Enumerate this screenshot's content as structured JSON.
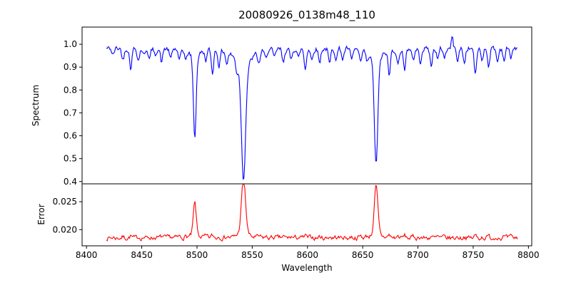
{
  "title": "20080926_0138m48_110",
  "colors": {
    "spectrum_line": "#0000ff",
    "error_line": "#ff0000",
    "axis": "#000000",
    "background": "#ffffff"
  },
  "axes": {
    "xlabel": "Wavelength",
    "xlim": [
      8396,
      8803
    ],
    "xticks": [
      {
        "value": 8400,
        "label": "8400"
      },
      {
        "value": 8450,
        "label": "8450"
      },
      {
        "value": 8500,
        "label": "8500"
      },
      {
        "value": 8550,
        "label": "8550"
      },
      {
        "value": 8600,
        "label": "8600"
      },
      {
        "value": 8650,
        "label": "8650"
      },
      {
        "value": 8700,
        "label": "8700"
      },
      {
        "value": 8750,
        "label": "8750"
      },
      {
        "value": 8800,
        "label": "8800"
      }
    ]
  },
  "panels": {
    "top": {
      "ylabel": "Spectrum",
      "ylim": [
        0.39,
        1.075
      ],
      "yticks": [
        {
          "value": 1.0,
          "label": "1.0"
        },
        {
          "value": 0.9,
          "label": "0.9"
        },
        {
          "value": 0.8,
          "label": "0.8"
        },
        {
          "value": 0.7,
          "label": "0.7"
        },
        {
          "value": 0.6,
          "label": "0.6"
        },
        {
          "value": 0.5,
          "label": "0.5"
        },
        {
          "value": 0.4,
          "label": "0.4"
        }
      ]
    },
    "bottom": {
      "ylabel": "Error",
      "ylim": [
        0.0171,
        0.0282
      ],
      "yticks": [
        {
          "value": 0.025,
          "label": "0.025"
        },
        {
          "value": 0.02,
          "label": "0.020"
        }
      ]
    }
  },
  "chart_data": {
    "type": "line",
    "title": "20080926_0138m48_110",
    "xlabel": "Wavelength",
    "x_range": [
      8418,
      8790
    ],
    "x_step": 0.75,
    "legend": "none",
    "grid": false,
    "panels": [
      {
        "name": "spectrum",
        "ylabel": "Spectrum",
        "ylim": [
          0.39,
          1.075
        ]
      },
      {
        "name": "error",
        "ylabel": "Error",
        "ylim": [
          0.0171,
          0.0282
        ]
      }
    ],
    "series": [
      {
        "name": "spectrum",
        "panel": "top",
        "color": "#0000ff",
        "continuum": 0.982,
        "noise_amplitude": 0.011,
        "strong_absorption_lines": [
          {
            "center": 8498.0,
            "core_depth": 0.34,
            "core_sigma": 1.2,
            "wing_depth": 0.05,
            "wing_gamma": 4.0,
            "min_value": 0.59
          },
          {
            "center": 8542.1,
            "core_depth": 0.45,
            "core_sigma": 1.8,
            "wing_depth": 0.12,
            "wing_gamma": 6.0,
            "min_value": 0.42
          },
          {
            "center": 8662.1,
            "core_depth": 0.43,
            "core_sigma": 1.5,
            "wing_depth": 0.08,
            "wing_gamma": 5.0,
            "min_value": 0.46
          }
        ],
        "weak_absorption_lines": [
          [
            8424,
            0.03
          ],
          [
            8433,
            0.05
          ],
          [
            8440,
            0.085
          ],
          [
            8447,
            0.05
          ],
          [
            8452,
            0.03
          ],
          [
            8457,
            0.045
          ],
          [
            8462,
            0.03
          ],
          [
            8468,
            0.06
          ],
          [
            8476,
            0.045
          ],
          [
            8484,
            0.055
          ],
          [
            8490,
            0.04
          ],
          [
            8508,
            0.04
          ],
          [
            8514,
            0.1
          ],
          [
            8520,
            0.065
          ],
          [
            8527,
            0.05
          ],
          [
            8536,
            0.045
          ],
          [
            8556,
            0.05
          ],
          [
            8562,
            0.035
          ],
          [
            8570,
            0.04
          ],
          [
            8578,
            0.06
          ],
          [
            8585,
            0.05
          ],
          [
            8592,
            0.04
          ],
          [
            8598,
            0.09
          ],
          [
            8604,
            0.05
          ],
          [
            8611,
            0.06
          ],
          [
            8620,
            0.07
          ],
          [
            8626,
            0.04
          ],
          [
            8632,
            0.045
          ],
          [
            8640,
            0.05
          ],
          [
            8648,
            0.06
          ],
          [
            8654,
            0.04
          ],
          [
            8674,
            0.11
          ],
          [
            8682,
            0.07
          ],
          [
            8688,
            0.1
          ],
          [
            8696,
            0.05
          ],
          [
            8702,
            0.06
          ],
          [
            8712,
            0.08
          ],
          [
            8718,
            0.05
          ],
          [
            8724,
            0.04
          ],
          [
            8736,
            0.05
          ],
          [
            8742,
            0.065
          ],
          [
            8752,
            0.12
          ],
          [
            8758,
            0.05
          ],
          [
            8764,
            0.075
          ],
          [
            8772,
            0.06
          ],
          [
            8778,
            0.05
          ],
          [
            8784,
            0.04
          ]
        ],
        "emission_spikes": [
          [
            8731,
            0.05,
            0.8
          ]
        ]
      },
      {
        "name": "error",
        "panel": "bottom",
        "color": "#ff0000",
        "baseline": 0.0185,
        "noise_amplitude": 0.0004,
        "peaks": [
          {
            "center": 8498.0,
            "height": 0.0056,
            "sigma": 1.3,
            "max_value": 0.0241
          },
          {
            "center": 8542.1,
            "height": 0.0092,
            "sigma": 1.9,
            "max_value": 0.0277
          },
          {
            "center": 8662.1,
            "height": 0.0082,
            "sigma": 1.6,
            "max_value": 0.0267
          }
        ],
        "weak_bump_scale": 0.004
      }
    ]
  }
}
